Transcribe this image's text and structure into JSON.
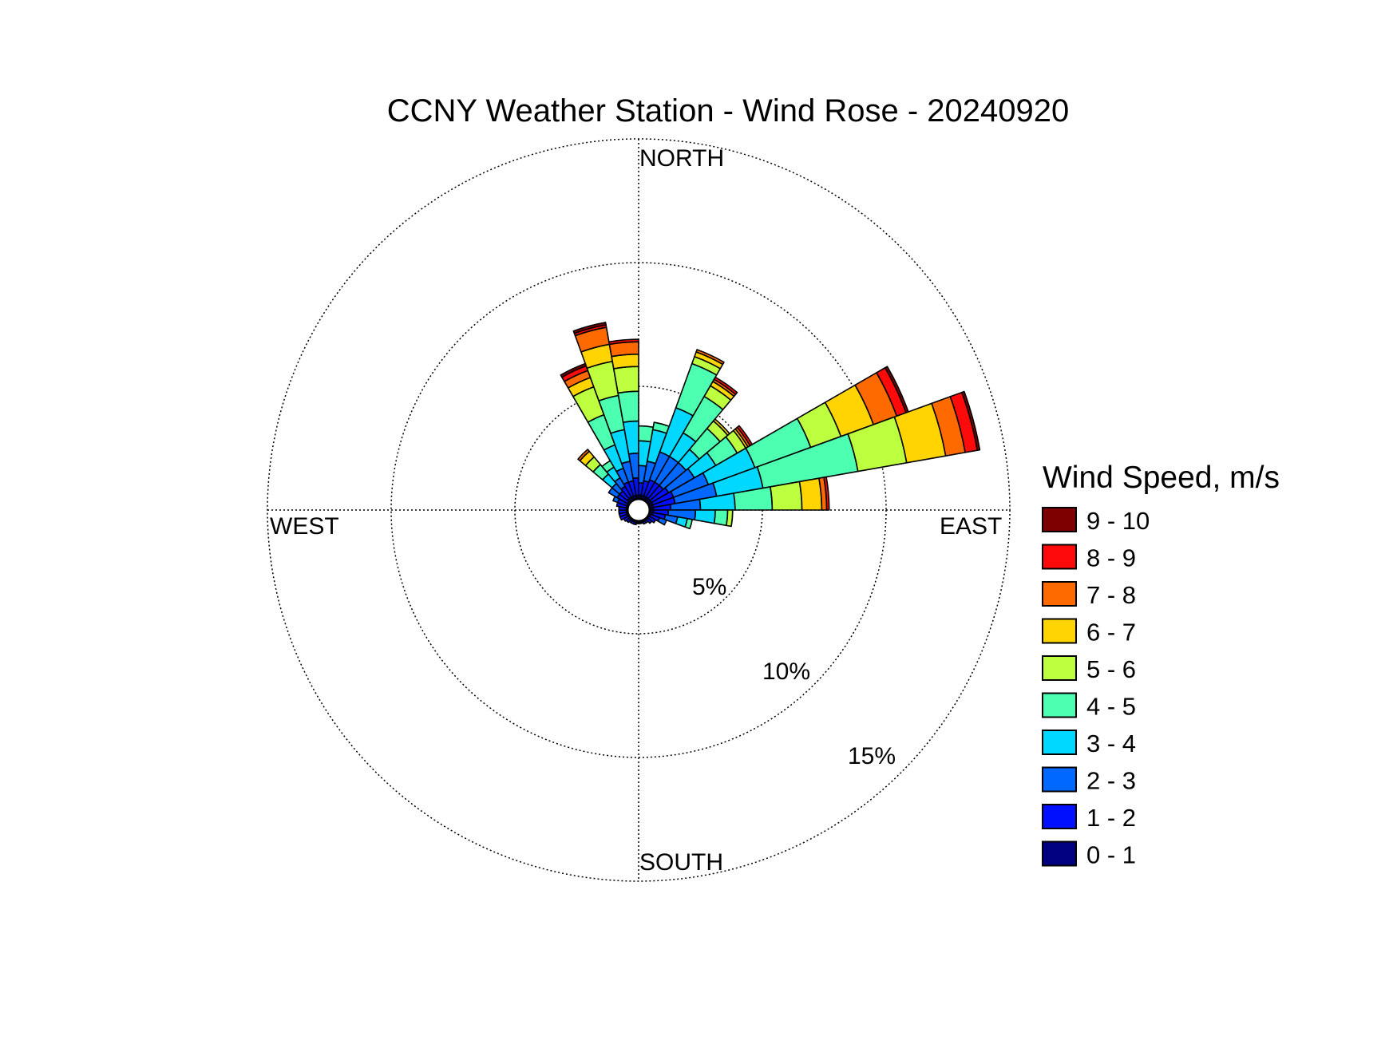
{
  "chart_data": {
    "type": "wind-rose",
    "title": "CCNY Weather Station - Wind Rose - 20240920",
    "direction_labels": {
      "north": "NORTH",
      "east": "EAST",
      "south": "SOUTH",
      "west": "WEST"
    },
    "radial_ticks": [
      5,
      10,
      15
    ],
    "radial_tick_labels": [
      "5%",
      "10%",
      "15%"
    ],
    "radial_max": 15,
    "grid": true,
    "legend": {
      "title": "Wind Speed, m/s",
      "placement": "right",
      "bins": [
        {
          "label": "9 - 10",
          "color": "#7f0000"
        },
        {
          "label": "8 - 9",
          "color": "#ff0a0a"
        },
        {
          "label": "7 - 8",
          "color": "#ff6a00"
        },
        {
          "label": "6 - 7",
          "color": "#ffd400"
        },
        {
          "label": "5 - 6",
          "color": "#bdff3f"
        },
        {
          "label": "4 - 5",
          "color": "#4dffb0"
        },
        {
          "label": "3 - 4",
          "color": "#00d8ff"
        },
        {
          "label": "2 - 3",
          "color": "#0068ff"
        },
        {
          "label": "1 - 2",
          "color": "#0010ff"
        },
        {
          "label": "0 - 1",
          "color": "#000080"
        }
      ]
    },
    "speed_bins": [
      "0 - 1",
      "1 - 2",
      "2 - 3",
      "3 - 4",
      "4 - 5",
      "5 - 6",
      "6 - 7",
      "7 - 8",
      "8 - 9",
      "9 - 10"
    ],
    "bin_colors": [
      "#000080",
      "#0010ff",
      "#0068ff",
      "#00d8ff",
      "#4dffb0",
      "#bdff3f",
      "#ffd400",
      "#ff6a00",
      "#ff0a0a",
      "#7f0000"
    ],
    "sector_width_deg": 10,
    "sectors": [
      {
        "direction": 335,
        "cumulative": [
          0.6,
          1.2,
          1.8,
          2.8,
          4.1,
          5.3,
          5.7,
          6.0,
          6.2,
          6.3
        ]
      },
      {
        "direction": 345,
        "cumulative": [
          0.6,
          1.2,
          2.0,
          3.3,
          4.7,
          6.1,
          6.8,
          7.5,
          7.6,
          7.7
        ]
      },
      {
        "direction": 355,
        "cumulative": [
          0.6,
          1.3,
          2.3,
          3.6,
          4.8,
          5.8,
          6.3,
          6.8,
          6.9,
          6.9
        ]
      },
      {
        "direction": 5,
        "cumulative": [
          0.6,
          1.1,
          1.8,
          2.8,
          3.4,
          3.4
        ]
      },
      {
        "direction": 15,
        "cumulative": [
          0.6,
          1.2,
          2.0,
          3.3,
          3.6,
          3.6
        ]
      },
      {
        "direction": 25,
        "cumulative": [
          0.6,
          1.3,
          2.5,
          4.4,
          6.3,
          6.6,
          6.8,
          6.9
        ]
      },
      {
        "direction": 35,
        "cumulative": [
          0.6,
          1.3,
          2.5,
          3.6,
          5.3,
          5.8,
          6.0,
          6.1,
          6.2
        ]
      },
      {
        "direction": 45,
        "cumulative": [
          0.6,
          1.3,
          2.5,
          3.2,
          4.3,
          4.7,
          4.8
        ]
      },
      {
        "direction": 55,
        "cumulative": [
          0.6,
          1.4,
          2.6,
          3.6,
          4.6,
          5.0,
          5.1,
          5.2,
          5.3
        ]
      },
      {
        "direction": 65,
        "cumulative": [
          0.6,
          1.5,
          3.0,
          5.0,
          7.4,
          8.7,
          10.1,
          11.1,
          11.5,
          11.6
        ]
      },
      {
        "direction": 75,
        "cumulative": [
          0.6,
          1.5,
          3.2,
          5.1,
          9.0,
          11.0,
          12.6,
          13.4,
          13.9,
          14.0
        ]
      },
      {
        "direction": 85,
        "cumulative": [
          0.6,
          1.3,
          2.5,
          3.9,
          5.4,
          6.6,
          7.4,
          7.6,
          7.7
        ]
      },
      {
        "direction": 95,
        "cumulative": [
          0.6,
          1.2,
          2.3,
          3.1,
          3.6,
          3.8
        ]
      },
      {
        "direction": 105,
        "cumulative": [
          0.6,
          1.1,
          1.6,
          2.0,
          2.2
        ]
      },
      {
        "direction": 115,
        "cumulative": [
          0.5,
          0.9,
          1.2
        ]
      },
      {
        "direction": 125,
        "cumulative": [
          0.5,
          0.8
        ]
      },
      {
        "direction": 135,
        "cumulative": [
          0.5,
          0.7
        ]
      },
      {
        "direction": 145,
        "cumulative": [
          0.5,
          0.6
        ]
      },
      {
        "direction": 155,
        "cumulative": [
          0.5,
          0.6
        ]
      },
      {
        "direction": 165,
        "cumulative": [
          0.5,
          0.55
        ]
      },
      {
        "direction": 175,
        "cumulative": [
          0.5,
          0.55
        ]
      },
      {
        "direction": 185,
        "cumulative": [
          0.5,
          0.55
        ]
      },
      {
        "direction": 195,
        "cumulative": [
          0.5,
          0.6
        ]
      },
      {
        "direction": 205,
        "cumulative": [
          0.5,
          0.6
        ]
      },
      {
        "direction": 215,
        "cumulative": [
          0.5,
          0.6
        ]
      },
      {
        "direction": 225,
        "cumulative": [
          0.5,
          0.65
        ]
      },
      {
        "direction": 235,
        "cumulative": [
          0.5,
          0.7
        ]
      },
      {
        "direction": 245,
        "cumulative": [
          0.5,
          0.8
        ]
      },
      {
        "direction": 255,
        "cumulative": [
          0.5,
          0.8
        ]
      },
      {
        "direction": 265,
        "cumulative": [
          0.5,
          0.8
        ]
      },
      {
        "direction": 275,
        "cumulative": [
          0.5,
          0.8
        ]
      },
      {
        "direction": 285,
        "cumulative": [
          0.5,
          0.9
        ]
      },
      {
        "direction": 295,
        "cumulative": [
          0.5,
          0.9,
          1.1
        ]
      },
      {
        "direction": 305,
        "cumulative": [
          0.5,
          1.0,
          1.4
        ]
      },
      {
        "direction": 315,
        "cumulative": [
          0.6,
          1.0,
          1.4,
          1.9,
          2.4,
          2.8,
          3.1,
          3.2
        ]
      },
      {
        "direction": 325,
        "cumulative": [
          0.6,
          1.1,
          1.5,
          2.0,
          2.3
        ]
      }
    ]
  }
}
